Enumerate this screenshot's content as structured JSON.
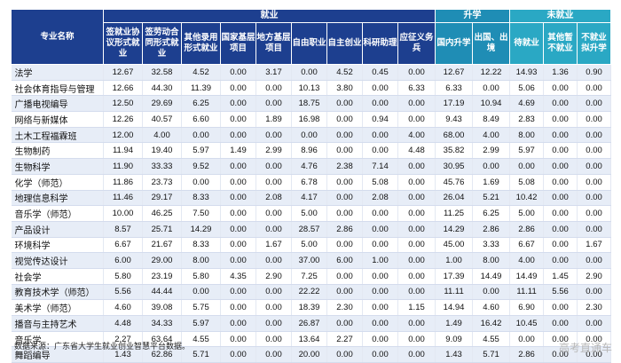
{
  "table": {
    "major_header": "专业名称",
    "groups": {
      "employment": "就业",
      "further_study": "升学",
      "unemployed": "未就业"
    },
    "columns": [
      "签就业协议形式就业",
      "签劳动合同形式就业",
      "其他录用形式就业",
      "国家基层项目",
      "地方基层项目",
      "自由职业",
      "自主创业",
      "科研助理",
      "应征义务兵",
      "国内升学",
      "出国、出境",
      "待就业",
      "其他暂不就业",
      "不就业拟升学"
    ],
    "rows": [
      {
        "major": "法学",
        "values": [
          "12.67",
          "32.58",
          "4.52",
          "0.00",
          "3.17",
          "0.00",
          "4.52",
          "0.45",
          "0.00",
          "12.67",
          "12.22",
          "14.93",
          "1.36",
          "0.90"
        ]
      },
      {
        "major": "社会体育指导与管理",
        "values": [
          "12.66",
          "44.30",
          "11.39",
          "0.00",
          "0.00",
          "10.13",
          "3.80",
          "0.00",
          "6.33",
          "6.33",
          "0.00",
          "5.06",
          "0.00",
          "0.00"
        ]
      },
      {
        "major": "广播电视编导",
        "values": [
          "12.50",
          "29.69",
          "6.25",
          "0.00",
          "0.00",
          "18.75",
          "0.00",
          "0.00",
          "0.00",
          "17.19",
          "10.94",
          "4.69",
          "0.00",
          "0.00"
        ]
      },
      {
        "major": "网络与新媒体",
        "values": [
          "12.26",
          "40.57",
          "6.60",
          "0.00",
          "1.89",
          "16.98",
          "0.00",
          "0.94",
          "0.00",
          "9.43",
          "8.49",
          "2.83",
          "0.00",
          "0.00"
        ]
      },
      {
        "major": "土木工程福霖班",
        "values": [
          "12.00",
          "4.00",
          "0.00",
          "0.00",
          "0.00",
          "0.00",
          "0.00",
          "0.00",
          "4.00",
          "68.00",
          "4.00",
          "8.00",
          "0.00",
          "0.00"
        ]
      },
      {
        "major": "生物制药",
        "values": [
          "11.94",
          "19.40",
          "5.97",
          "1.49",
          "2.99",
          "8.96",
          "0.00",
          "0.00",
          "4.48",
          "35.82",
          "2.99",
          "5.97",
          "0.00",
          "0.00"
        ]
      },
      {
        "major": "生物科学",
        "values": [
          "11.90",
          "33.33",
          "9.52",
          "0.00",
          "0.00",
          "4.76",
          "2.38",
          "7.14",
          "0.00",
          "30.95",
          "0.00",
          "0.00",
          "0.00",
          "0.00"
        ]
      },
      {
        "major": "化学（师范）",
        "values": [
          "11.86",
          "23.73",
          "0.00",
          "0.00",
          "0.00",
          "6.78",
          "0.00",
          "5.08",
          "0.00",
          "45.76",
          "1.69",
          "5.08",
          "0.00",
          "0.00"
        ]
      },
      {
        "major": "地理信息科学",
        "values": [
          "11.46",
          "29.17",
          "8.33",
          "0.00",
          "2.08",
          "4.17",
          "0.00",
          "2.08",
          "0.00",
          "26.04",
          "5.21",
          "10.42",
          "0.00",
          "0.00"
        ]
      },
      {
        "major": "音乐学（师范）",
        "values": [
          "10.00",
          "46.25",
          "7.50",
          "0.00",
          "0.00",
          "5.00",
          "0.00",
          "0.00",
          "0.00",
          "11.25",
          "6.25",
          "5.00",
          "0.00",
          "0.00"
        ]
      },
      {
        "major": "产品设计",
        "values": [
          "8.57",
          "25.71",
          "14.29",
          "0.00",
          "0.00",
          "28.57",
          "2.86",
          "0.00",
          "0.00",
          "14.29",
          "2.86",
          "2.86",
          "0.00",
          "0.00"
        ]
      },
      {
        "major": "环境科学",
        "values": [
          "6.67",
          "21.67",
          "8.33",
          "0.00",
          "1.67",
          "5.00",
          "0.00",
          "0.00",
          "0.00",
          "45.00",
          "3.33",
          "6.67",
          "0.00",
          "1.67"
        ]
      },
      {
        "major": "视觉传达设计",
        "values": [
          "6.00",
          "29.00",
          "8.00",
          "0.00",
          "0.00",
          "37.00",
          "6.00",
          "1.00",
          "0.00",
          "1.00",
          "8.00",
          "4.00",
          "0.00",
          "0.00"
        ]
      },
      {
        "major": "社会学",
        "values": [
          "5.80",
          "23.19",
          "5.80",
          "4.35",
          "2.90",
          "7.25",
          "0.00",
          "0.00",
          "0.00",
          "17.39",
          "14.49",
          "14.49",
          "1.45",
          "2.90"
        ]
      },
      {
        "major": "教育技术学（师范）",
        "values": [
          "5.56",
          "44.44",
          "0.00",
          "0.00",
          "0.00",
          "22.22",
          "0.00",
          "0.00",
          "0.00",
          "11.11",
          "0.00",
          "11.11",
          "5.56",
          "0.00"
        ]
      },
      {
        "major": "美术学（师范）",
        "values": [
          "4.60",
          "39.08",
          "5.75",
          "0.00",
          "0.00",
          "18.39",
          "2.30",
          "0.00",
          "1.15",
          "14.94",
          "4.60",
          "6.90",
          "0.00",
          "2.30"
        ]
      },
      {
        "major": "播音与主持艺术",
        "values": [
          "4.48",
          "34.33",
          "5.97",
          "0.00",
          "0.00",
          "26.87",
          "0.00",
          "0.00",
          "0.00",
          "1.49",
          "16.42",
          "10.45",
          "0.00",
          "0.00"
        ]
      },
      {
        "major": "音乐学",
        "values": [
          "2.27",
          "63.64",
          "4.55",
          "0.00",
          "0.00",
          "13.64",
          "2.27",
          "0.00",
          "0.00",
          "9.09",
          "4.55",
          "0.00",
          "0.00",
          "0.00"
        ]
      },
      {
        "major": "舞蹈编导",
        "values": [
          "1.43",
          "62.86",
          "5.71",
          "0.00",
          "0.00",
          "20.00",
          "0.00",
          "0.00",
          "0.00",
          "1.43",
          "5.71",
          "2.86",
          "0.00",
          "0.00"
        ]
      }
    ]
  },
  "source": "数据来源：广东省大学生就业创业智慧平台数据。",
  "watermark": "高考直通车",
  "colors": {
    "header_primary": "#1d3f8f",
    "header_study": "#1f8db5",
    "header_unemployed": "#2aa8c4",
    "row_alt": "#e7edf7"
  }
}
